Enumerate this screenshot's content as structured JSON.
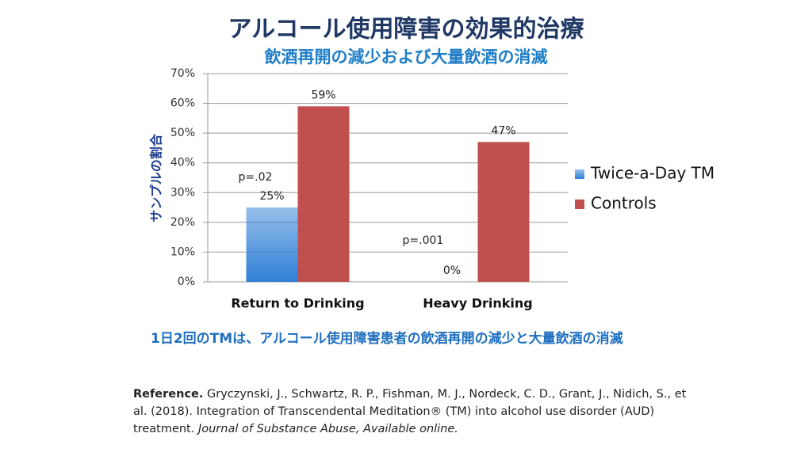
{
  "chart_data": {
    "type": "bar",
    "title": "アルコール使用障害の効果的治療",
    "subtitle": "飲酒再開の減少および大量飲酒の消滅",
    "y_label": "サンプルの割合",
    "categories": [
      "Return to Drinking",
      "Heavy Drinking"
    ],
    "series": [
      {
        "name": "Twice-a-Day TM",
        "color": "#2f7fd6",
        "values": [
          25,
          0
        ],
        "value_labels": [
          "25%",
          "0%"
        ]
      },
      {
        "name": "Controls",
        "color": "#c0504d",
        "values": [
          59,
          47
        ],
        "value_labels": [
          "59%",
          "47%"
        ]
      }
    ],
    "annotations": [
      "p=.02",
      "p=.001"
    ],
    "ylim": [
      0,
      70
    ],
    "yticks": [
      {
        "value": 0,
        "label": "0%"
      },
      {
        "value": 10,
        "label": "10%"
      },
      {
        "value": 20,
        "label": "20%"
      },
      {
        "value": 30,
        "label": "30%"
      },
      {
        "value": 40,
        "label": "40%"
      },
      {
        "value": 50,
        "label": "50%"
      },
      {
        "value": 60,
        "label": "60%"
      },
      {
        "value": 70,
        "label": "70%"
      }
    ],
    "grid": true,
    "legend": "right"
  },
  "caption": "1日2回のTMは、アルコール使用障害患者の飲酒再開の減少と大量飲酒の消滅",
  "reference": {
    "label": "Reference.",
    "text": "Gryczynski, J., Schwartz, R. P., Fishman, M. J., Nordeck, C. D., Grant, J., Nidich, S., et al. (2018). Integration of Transcendental Meditation® (TM) into alcohol use disorder (AUD) treatment.",
    "journal": "Journal of Substance Abuse, Available online."
  }
}
